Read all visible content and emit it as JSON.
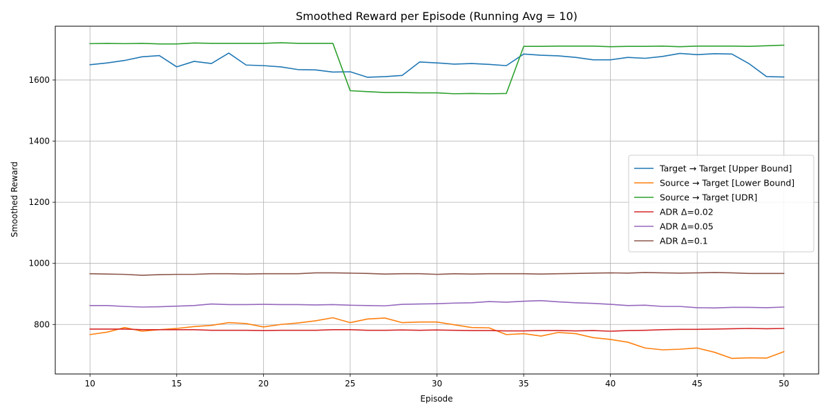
{
  "chart_data": {
    "type": "line",
    "title": "Smoothed Reward per Episode (Running Avg = 10)",
    "xlabel": "Episode",
    "ylabel": "Smoothed Reward",
    "xlim": [
      8,
      52
    ],
    "ylim": [
      638,
      1776
    ],
    "xticks": [
      10,
      15,
      20,
      25,
      30,
      35,
      40,
      45,
      50
    ],
    "yticks": [
      800,
      1000,
      1200,
      1400,
      1600
    ],
    "grid": true,
    "legend_position": "center-right",
    "x": [
      10,
      11,
      12,
      13,
      14,
      15,
      16,
      17,
      18,
      19,
      20,
      21,
      22,
      23,
      24,
      25,
      26,
      27,
      28,
      29,
      30,
      31,
      32,
      33,
      34,
      35,
      36,
      37,
      38,
      39,
      40,
      41,
      42,
      43,
      44,
      45,
      46,
      47,
      48,
      49,
      50
    ],
    "series": [
      {
        "name": "Target → Target [Upper Bound]",
        "color": "#1f77b4",
        "values": [
          1650,
          1656,
          1664,
          1676,
          1680,
          1643,
          1661,
          1654,
          1688,
          1649,
          1647,
          1643,
          1634,
          1633,
          1626,
          1627,
          1609,
          1611,
          1615,
          1659,
          1656,
          1652,
          1654,
          1651,
          1647,
          1685,
          1681,
          1679,
          1674,
          1666,
          1666,
          1674,
          1671,
          1677,
          1687,
          1683,
          1686,
          1685,
          1653,
          1611,
          1610
        ]
      },
      {
        "name": "Source → Target [Lower Bound]",
        "color": "#ff7f0e",
        "values": [
          767,
          775,
          790,
          778,
          783,
          787,
          793,
          797,
          806,
          803,
          792,
          800,
          805,
          812,
          822,
          806,
          818,
          821,
          806,
          808,
          808,
          799,
          790,
          789,
          767,
          770,
          762,
          774,
          770,
          757,
          751,
          742,
          723,
          717,
          719,
          723,
          709,
          689,
          691,
          690,
          711
        ]
      },
      {
        "name": "Source → Target [UDR]",
        "color": "#2ca02c",
        "values": [
          1719,
          1720,
          1719,
          1720,
          1718,
          1718,
          1721,
          1720,
          1720,
          1720,
          1720,
          1722,
          1720,
          1720,
          1720,
          1565,
          1562,
          1559,
          1559,
          1558,
          1558,
          1555,
          1556,
          1555,
          1556,
          1710,
          1710,
          1711,
          1711,
          1711,
          1709,
          1710,
          1710,
          1711,
          1709,
          1711,
          1711,
          1711,
          1710,
          1712,
          1714
        ]
      },
      {
        "name": "ADR Δ=0.02",
        "color": "#d62728",
        "values": [
          785,
          785,
          785,
          783,
          783,
          783,
          783,
          781,
          781,
          781,
          780,
          781,
          781,
          781,
          783,
          783,
          781,
          781,
          782,
          781,
          782,
          781,
          780,
          780,
          779,
          779,
          780,
          780,
          779,
          780,
          778,
          780,
          781,
          783,
          784,
          784,
          785,
          786,
          787,
          786,
          787
        ]
      },
      {
        "name": "ADR Δ=0.05",
        "color": "#9467bd",
        "values": [
          862,
          862,
          859,
          857,
          858,
          860,
          862,
          867,
          865,
          865,
          866,
          865,
          865,
          864,
          865,
          863,
          862,
          861,
          866,
          867,
          868,
          870,
          871,
          875,
          873,
          876,
          878,
          874,
          871,
          869,
          866,
          862,
          863,
          859,
          859,
          855,
          854,
          856,
          856,
          855,
          857
        ]
      },
      {
        "name": "ADR Δ=0.1",
        "color": "#8c564b",
        "values": [
          966,
          965,
          964,
          961,
          963,
          964,
          964,
          966,
          966,
          965,
          966,
          966,
          966,
          969,
          969,
          968,
          967,
          965,
          966,
          966,
          964,
          966,
          965,
          966,
          966,
          966,
          965,
          966,
          967,
          968,
          969,
          968,
          970,
          969,
          968,
          969,
          970,
          969,
          967,
          967,
          967
        ]
      }
    ]
  }
}
